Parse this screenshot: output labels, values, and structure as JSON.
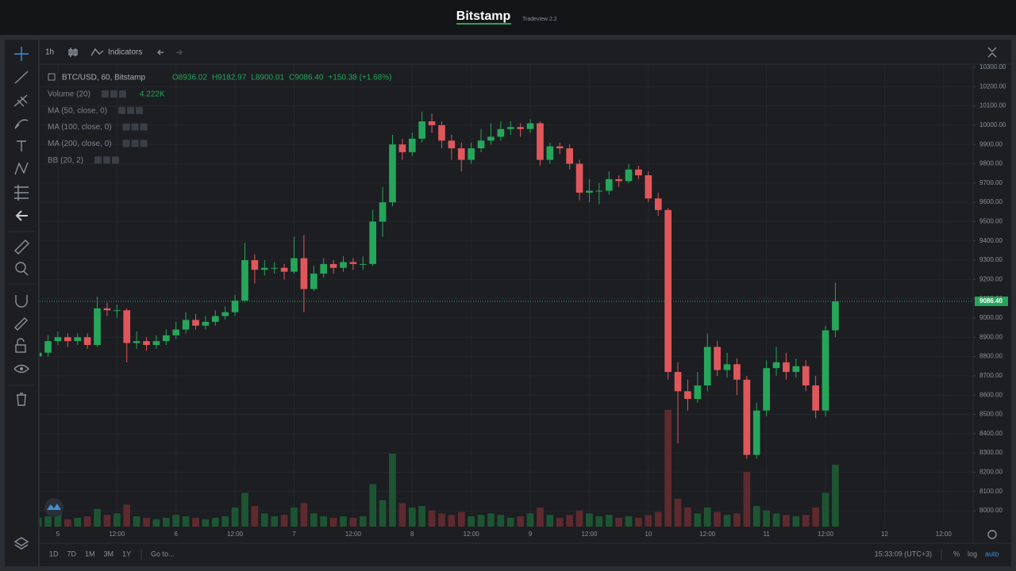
{
  "header": {
    "brand": "Bitstamp",
    "version": "Tradeview 2.2"
  },
  "toolbar": {
    "interval": "1h",
    "indicators": "Indicators"
  },
  "chart_data": {
    "type": "candlestick",
    "symbol": "BTC/USD, 60, Bitstamp",
    "ohlc_labels": [
      "O8936.02",
      "H9182.97",
      "L8900.01",
      "C9086.40"
    ],
    "change_label": "+150.38 (+1.68%)",
    "studies": [
      "Volume (20)",
      "MA (50, close, 0)",
      "MA (100, close, 0)",
      "MA (200, close, 0)",
      "BB (20, 2)"
    ],
    "volume_label": "4.222K",
    "price_label": "9086.40",
    "colors": {
      "up": "#26a65b",
      "down": "#e0575b",
      "volume_up": "#1d5533",
      "volume_down": "#5e2a2e"
    },
    "grid": true,
    "xlim": [
      -3.7,
      186
    ],
    "xticks": [
      {
        "value": 0,
        "label": "5"
      },
      {
        "value": 12,
        "label": "12:00"
      },
      {
        "value": 24,
        "label": "6"
      },
      {
        "value": 36,
        "label": "12:00"
      },
      {
        "value": 48,
        "label": "7"
      },
      {
        "value": 60,
        "label": "12:00"
      },
      {
        "value": 72,
        "label": "8"
      },
      {
        "value": 84,
        "label": "12:00"
      },
      {
        "value": 96,
        "label": "9"
      },
      {
        "value": 108,
        "label": "12:00"
      },
      {
        "value": 120,
        "label": "10"
      },
      {
        "value": 132,
        "label": "12:00"
      },
      {
        "value": 144,
        "label": "11"
      },
      {
        "value": 156,
        "label": "12:00"
      },
      {
        "value": 168,
        "label": "12"
      },
      {
        "value": 180,
        "label": "12:00"
      }
    ],
    "ylim": [
      7918,
      10312
    ],
    "yticks": [
      {
        "value": 8000,
        "label": "8000.00"
      },
      {
        "value": 8100,
        "label": "8100.00"
      },
      {
        "value": 8200,
        "label": "8200.00"
      },
      {
        "value": 8300,
        "label": "8300.00"
      },
      {
        "value": 8400,
        "label": "8400.00"
      },
      {
        "value": 8500,
        "label": "8500.00"
      },
      {
        "value": 8600,
        "label": "8600.00"
      },
      {
        "value": 8700,
        "label": "8700.00"
      },
      {
        "value": 8800,
        "label": "8800.00"
      },
      {
        "value": 8900,
        "label": "8900.00"
      },
      {
        "value": 9000,
        "label": "9000.00"
      },
      {
        "value": 9100,
        "label": "9100.00"
      },
      {
        "value": 9200,
        "label": "9200.00"
      },
      {
        "value": 9300,
        "label": "9300.00"
      },
      {
        "value": 9400,
        "label": "9400.00"
      },
      {
        "value": 9500,
        "label": "9500.00"
      },
      {
        "value": 9600,
        "label": "9600.00"
      },
      {
        "value": 9700,
        "label": "9700.00"
      },
      {
        "value": 9800,
        "label": "9800.00"
      },
      {
        "value": 9900,
        "label": "9900.00"
      },
      {
        "value": 10000,
        "label": "10000.00"
      },
      {
        "value": 10100,
        "label": "10100.00"
      },
      {
        "value": 10200,
        "label": "10200.00"
      },
      {
        "value": 10300,
        "label": "10300.00"
      }
    ],
    "vlim": [
      0,
      12000
    ],
    "x": [
      -4,
      -2,
      0,
      2,
      4,
      6,
      8,
      10,
      12,
      14,
      16,
      18,
      20,
      22,
      24,
      26,
      28,
      30,
      32,
      34,
      36,
      38,
      40,
      42,
      44,
      46,
      48,
      50,
      52,
      54,
      56,
      58,
      60,
      62,
      64,
      66,
      68,
      70,
      72,
      74,
      76,
      78,
      80,
      82,
      84,
      86,
      88,
      90,
      92,
      94,
      96,
      98,
      100,
      102,
      104,
      106,
      108,
      110,
      112,
      114,
      116,
      118,
      120,
      122,
      124,
      126,
      128,
      130,
      132,
      134,
      136,
      138,
      140,
      142,
      144,
      146,
      148,
      150,
      152,
      154,
      156,
      158
    ],
    "candles": [
      [
        8800,
        8850,
        8780,
        8820,
        600
      ],
      [
        8820,
        8910,
        8800,
        8880,
        700
      ],
      [
        8880,
        8930,
        8860,
        8900,
        900
      ],
      [
        8900,
        8920,
        8850,
        8880,
        500
      ],
      [
        8880,
        8920,
        8860,
        8900,
        600
      ],
      [
        8900,
        8920,
        8840,
        8860,
        700
      ],
      [
        8860,
        9110,
        8850,
        9050,
        1200
      ],
      [
        9050,
        9080,
        9010,
        9040,
        800
      ],
      [
        9040,
        9070,
        9000,
        9040,
        900
      ],
      [
        9040,
        9050,
        8770,
        8870,
        1500
      ],
      [
        8870,
        8930,
        8840,
        8880,
        700
      ],
      [
        8880,
        8900,
        8830,
        8860,
        600
      ],
      [
        8860,
        8910,
        8840,
        8880,
        500
      ],
      [
        8880,
        8940,
        8860,
        8910,
        600
      ],
      [
        8910,
        8980,
        8890,
        8940,
        800
      ],
      [
        8940,
        9030,
        8920,
        8990,
        700
      ],
      [
        8990,
        9020,
        8940,
        8960,
        600
      ],
      [
        8960,
        9010,
        8940,
        8980,
        500
      ],
      [
        8980,
        9040,
        8960,
        9010,
        600
      ],
      [
        9010,
        9060,
        8990,
        9030,
        700
      ],
      [
        9030,
        9120,
        9010,
        9090,
        1300
      ],
      [
        9090,
        9390,
        9080,
        9300,
        2300
      ],
      [
        9300,
        9330,
        9180,
        9250,
        1400
      ],
      [
        9250,
        9300,
        9220,
        9260,
        900
      ],
      [
        9260,
        9290,
        9230,
        9260,
        700
      ],
      [
        9260,
        9280,
        9200,
        9240,
        800
      ],
      [
        9240,
        9420,
        9230,
        9310,
        1300
      ],
      [
        9310,
        9430,
        9030,
        9150,
        1600
      ],
      [
        9150,
        9270,
        9140,
        9230,
        900
      ],
      [
        9230,
        9310,
        9210,
        9280,
        700
      ],
      [
        9280,
        9300,
        9230,
        9260,
        600
      ],
      [
        9260,
        9320,
        9240,
        9290,
        700
      ],
      [
        9290,
        9310,
        9250,
        9280,
        600
      ],
      [
        9280,
        9320,
        9250,
        9280,
        700
      ],
      [
        9280,
        9560,
        9270,
        9500,
        2900
      ],
      [
        9500,
        9680,
        9420,
        9600,
        1800
      ],
      [
        9600,
        9950,
        9580,
        9900,
        4980
      ],
      [
        9900,
        9930,
        9820,
        9860,
        1600
      ],
      [
        9860,
        9960,
        9840,
        9930,
        1300
      ],
      [
        9930,
        10070,
        9910,
        10020,
        1400
      ],
      [
        10020,
        10060,
        9960,
        10000,
        1100
      ],
      [
        10000,
        10020,
        9880,
        9920,
        900
      ],
      [
        9920,
        9950,
        9820,
        9880,
        800
      ],
      [
        9880,
        9910,
        9760,
        9820,
        1000
      ],
      [
        9820,
        9910,
        9800,
        9880,
        700
      ],
      [
        9880,
        9980,
        9860,
        9920,
        800
      ],
      [
        9920,
        10010,
        9900,
        9940,
        900
      ],
      [
        9940,
        10020,
        9920,
        9980,
        800
      ],
      [
        9980,
        10020,
        9950,
        9990,
        600
      ],
      [
        9990,
        10010,
        9940,
        9980,
        700
      ],
      [
        9980,
        10030,
        9960,
        10010,
        900
      ],
      [
        10010,
        10020,
        9790,
        9820,
        1300
      ],
      [
        9820,
        9910,
        9800,
        9890,
        800
      ],
      [
        9890,
        9910,
        9850,
        9880,
        600
      ],
      [
        9880,
        9900,
        9770,
        9800,
        800
      ],
      [
        9800,
        9820,
        9610,
        9650,
        1100
      ],
      [
        9650,
        9720,
        9600,
        9660,
        900
      ],
      [
        9660,
        9700,
        9590,
        9660,
        700
      ],
      [
        9660,
        9760,
        9640,
        9720,
        800
      ],
      [
        9720,
        9740,
        9680,
        9710,
        600
      ],
      [
        9710,
        9800,
        9700,
        9770,
        700
      ],
      [
        9770,
        9790,
        9720,
        9740,
        600
      ],
      [
        9740,
        9760,
        9600,
        9620,
        800
      ],
      [
        9620,
        9650,
        9530,
        9560,
        1000
      ],
      [
        9560,
        9570,
        8680,
        8720,
        7960
      ],
      [
        8720,
        8770,
        8350,
        8620,
        1900
      ],
      [
        8620,
        8680,
        8520,
        8580,
        1300
      ],
      [
        8580,
        8720,
        8560,
        8650,
        900
      ],
      [
        8650,
        8920,
        8620,
        8850,
        1300
      ],
      [
        8850,
        8880,
        8700,
        8730,
        1000
      ],
      [
        8730,
        8820,
        8690,
        8760,
        800
      ],
      [
        8760,
        8790,
        8600,
        8680,
        900
      ],
      [
        8680,
        8700,
        8270,
        8290,
        3735
      ],
      [
        8290,
        8560,
        8270,
        8520,
        1400
      ],
      [
        8520,
        8780,
        8490,
        8740,
        1100
      ],
      [
        8740,
        8850,
        8700,
        8770,
        900
      ],
      [
        8770,
        8820,
        8680,
        8720,
        800
      ],
      [
        8720,
        8790,
        8690,
        8750,
        700
      ],
      [
        8750,
        8780,
        8620,
        8650,
        800
      ],
      [
        8650,
        8700,
        8480,
        8520,
        1300
      ],
      [
        8520,
        8960,
        8490,
        8936.02,
        2300
      ],
      [
        8936.02,
        9182.97,
        8900.01,
        9086.4,
        4222
      ]
    ]
  },
  "footer": {
    "ranges": [
      "1D",
      "7D",
      "1M",
      "3M",
      "1Y"
    ],
    "goto": "Go to...",
    "clock": "15:33:09 (UTC+3)",
    "options": [
      "%",
      "log",
      "auto"
    ]
  }
}
